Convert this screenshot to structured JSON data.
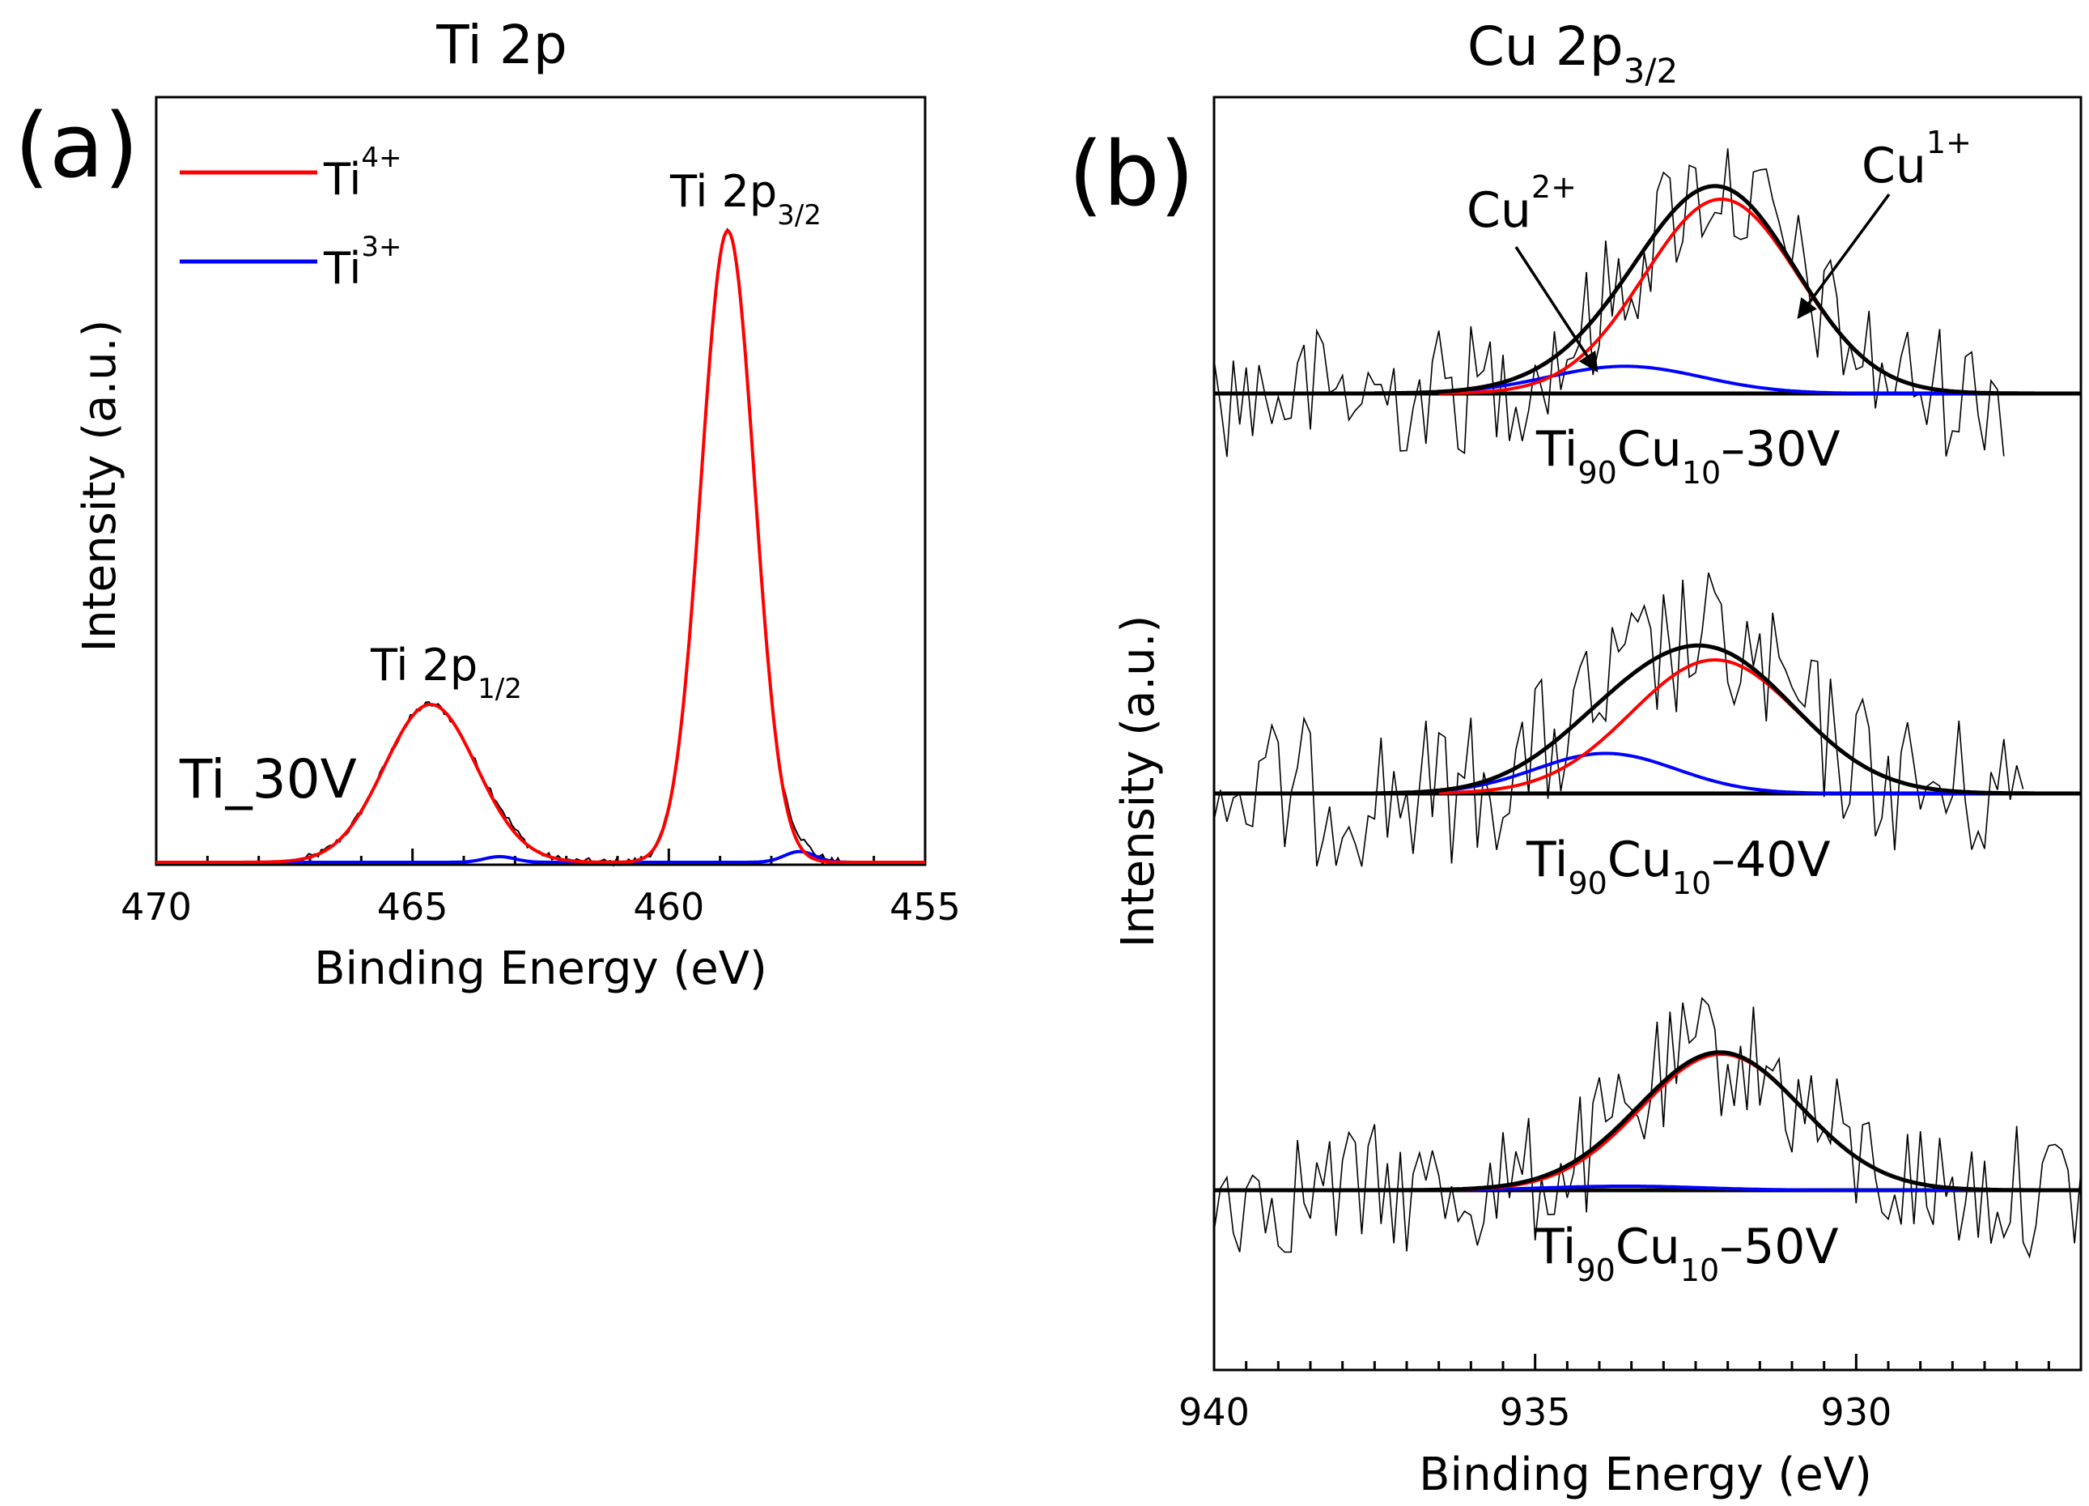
{
  "chart_data": [
    {
      "panel_label": "(a)",
      "type": "line",
      "title": "Ti 2p",
      "xlabel": "Binding Energy (eV)",
      "ylabel": "Intensity (a.u.)",
      "xlim": [
        470,
        455
      ],
      "ylim": [
        0,
        1.08
      ],
      "x_ticks": [
        {
          "value": 470,
          "label": "470"
        },
        {
          "value": 465,
          "label": "465"
        },
        {
          "value": 460,
          "label": "460"
        },
        {
          "value": 455,
          "label": "455"
        }
      ],
      "sample_label": "Ti_30V",
      "legend": [
        {
          "series": "Ti4+",
          "base": "Ti",
          "sup": "4+",
          "color": "#ff0000"
        },
        {
          "series": "Ti3+",
          "base": "Ti",
          "sup": "3+",
          "color": "#0000ff"
        }
      ],
      "annotations": [
        {
          "base": "Ti 2p",
          "sub": "3/2",
          "at_x": 458.8
        },
        {
          "base": "Ti 2p",
          "sub": "1/2",
          "at_x": 464.6
        }
      ],
      "series": [
        {
          "name": "Ti4+",
          "color": "#ff0000",
          "peaks": [
            {
              "center": 458.85,
              "height": 1.0,
              "sigma": 0.52
            },
            {
              "center": 464.65,
              "height": 0.25,
              "sigma": 0.9
            }
          ]
        },
        {
          "name": "Ti3+",
          "color": "#0000ff",
          "peaks": [
            {
              "center": 457.45,
              "height": 0.017,
              "sigma": 0.3
            },
            {
              "center": 463.3,
              "height": 0.009,
              "sigma": 0.3
            }
          ]
        },
        {
          "name": "Envelope",
          "color": "#000000",
          "peaks": [
            {
              "center": 458.85,
              "height": 1.0,
              "sigma": 0.52
            },
            {
              "center": 464.65,
              "height": 0.25,
              "sigma": 0.9
            },
            {
              "center": 457.45,
              "height": 0.017,
              "sigma": 0.3
            },
            {
              "center": 463.3,
              "height": 0.009,
              "sigma": 0.3
            }
          ]
        }
      ]
    },
    {
      "panel_label": "(b)",
      "type": "line",
      "title_base": "Cu 2p",
      "title_sub": "3/2",
      "xlabel": "Binding Energy (eV)",
      "ylabel": "Intensity (a.u.)",
      "xlim": [
        940,
        926.5
      ],
      "x_ticks": [
        {
          "value": 940,
          "label": "940"
        },
        {
          "value": 935,
          "label": "935"
        },
        {
          "value": 930,
          "label": "930"
        }
      ],
      "arrow_labels": [
        {
          "base": "Cu",
          "sup": "2+",
          "points_to": {
            "x": 933.6,
            "sample": "30V"
          }
        },
        {
          "base": "Cu",
          "sup": "1+",
          "points_to": {
            "x": 931.2,
            "sample": "30V"
          }
        }
      ],
      "stacks": [
        {
          "sample": "30V",
          "label": {
            "p1": "Ti",
            "s1": "90",
            "p2": "Cu",
            "s2": "10",
            "p3": "–30V"
          },
          "peaks": {
            "cu1": {
              "center": 932.1,
              "height": 1.0,
              "sigma": 1.2
            },
            "cu2": {
              "center": 933.6,
              "height": 0.14,
              "sigma": 1.2
            }
          }
        },
        {
          "sample": "40V",
          "label": {
            "p1": "Ti",
            "s1": "90",
            "p2": "Cu",
            "s2": "10",
            "p3": "–40V"
          },
          "peaks": {
            "cu1": {
              "center": 932.2,
              "height": 1.0,
              "sigma": 1.3
            },
            "cu2": {
              "center": 933.9,
              "height": 0.3,
              "sigma": 1.1
            }
          }
        },
        {
          "sample": "50V",
          "label": {
            "p1": "Ti",
            "s1": "90",
            "p2": "Cu",
            "s2": "10",
            "p3": "–50V"
          },
          "peaks": {
            "cu1": {
              "center": 932.1,
              "height": 1.0,
              "sigma": 1.25
            },
            "cu2": {
              "center": 933.6,
              "height": 0.03,
              "sigma": 1.2
            }
          }
        }
      ]
    }
  ]
}
